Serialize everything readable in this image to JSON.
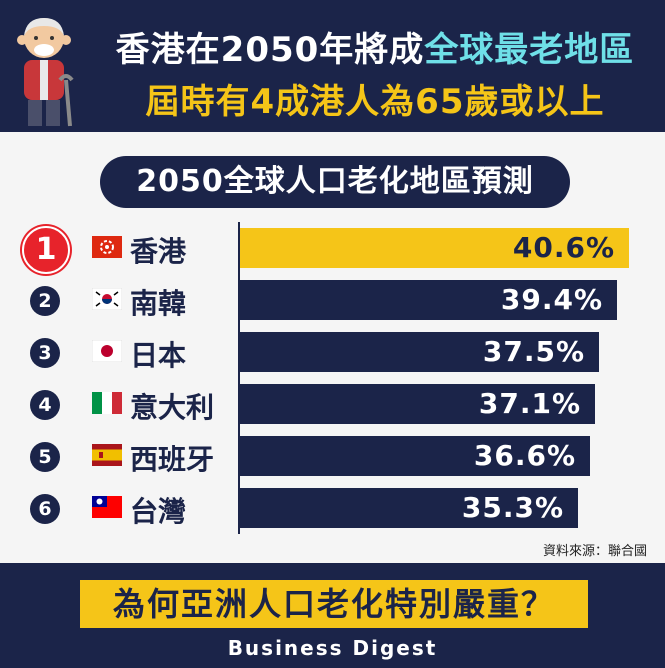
{
  "header": {
    "title_a": "香港在2050年將成",
    "title_b": "全球最老地區",
    "title_line2": "屆時有4成港人為65歲或以上"
  },
  "subtitle": "2050全球人口老化地區預測",
  "chart_data": {
    "type": "bar",
    "orientation": "horizontal",
    "title": "2050全球人口老化地區預測",
    "categories": [
      "香港",
      "南韓",
      "日本",
      "意大利",
      "西班牙",
      "台灣"
    ],
    "ranks": [
      "1",
      "2",
      "3",
      "4",
      "5",
      "6"
    ],
    "values": [
      40.6,
      39.4,
      37.5,
      37.1,
      36.6,
      35.3
    ],
    "value_labels": [
      "40.6%",
      "39.4%",
      "37.5%",
      "37.1%",
      "36.6%",
      "35.3%"
    ],
    "xlim": [
      0,
      42
    ],
    "grid": false,
    "colors": {
      "highlight": "#f5c518",
      "bar": "#1b2449"
    },
    "flags": [
      "hong-kong-flag-icon",
      "south-korea-flag-icon",
      "japan-flag-icon",
      "italy-flag-icon",
      "spain-flag-icon",
      "taiwan-flag-icon"
    ]
  },
  "source": "資料來源：聯合國",
  "footer": {
    "question": "為何亞洲人口老化特別嚴重？",
    "brand": "Business Digest"
  },
  "colors": {
    "navy": "#1b2449",
    "yellow": "#f5c518",
    "cyan": "#6fe0e8",
    "red": "#e7232b"
  }
}
